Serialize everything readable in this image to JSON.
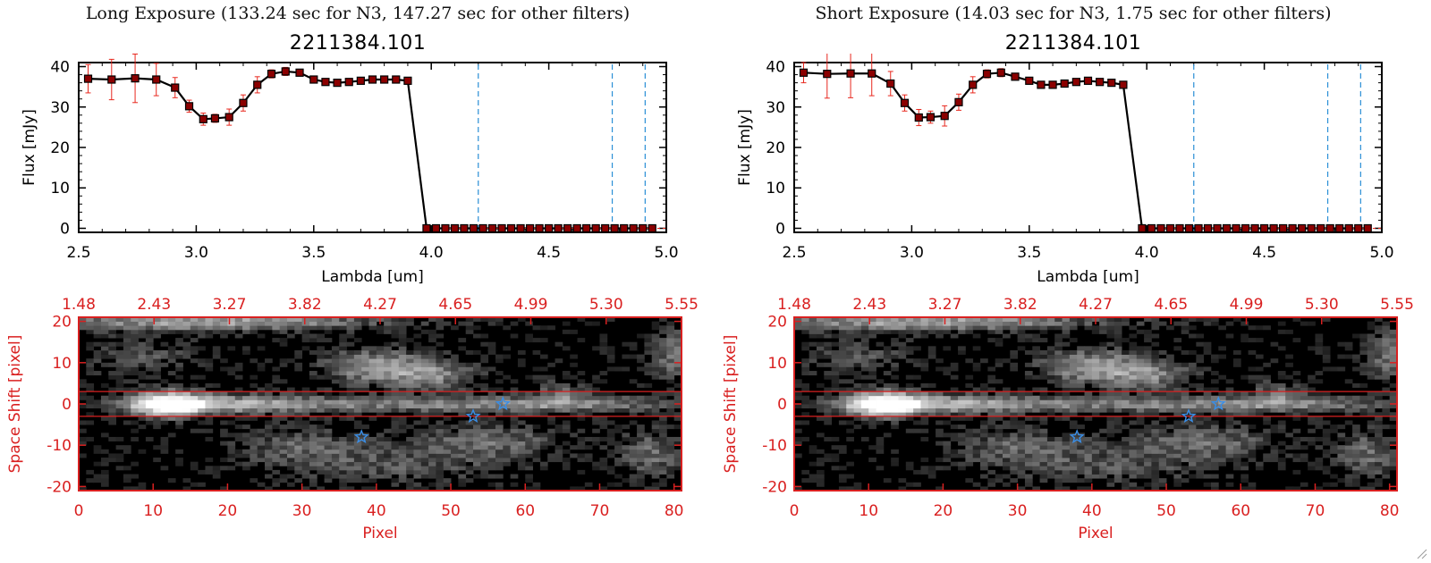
{
  "panels": [
    {
      "id": "long",
      "exposure_title": "Long Exposure (133.24 sec for N3, 147.27 sec for other filters)",
      "source_id": "2211384.101"
    },
    {
      "id": "short",
      "exposure_title": "Short Exposure (14.03 sec for N3, 1.75 sec for other filters)",
      "source_id": "2211384.101"
    }
  ],
  "colors": {
    "axis": "#000000",
    "line": "#000000",
    "marker": "#8b0000",
    "errorbar": "#e8281e",
    "filter_line": "#2a8fd6",
    "image_axis": "#d92020",
    "aperture": "#d92020",
    "star_marker": "#3a8ee6"
  },
  "chart_data": [
    {
      "panel": "long",
      "type": "line",
      "title": "2211384.101",
      "xlabel": "Lambda [um]",
      "ylabel": "Flux [mJy]",
      "xlim": [
        2.5,
        5.0
      ],
      "ylim": [
        -1,
        41
      ],
      "xticks": [
        "2.5",
        "3.0",
        "3.5",
        "4.0",
        "4.5",
        "5.0"
      ],
      "yticks": [
        "0",
        "10",
        "20",
        "30",
        "40"
      ],
      "filter_lines": [
        4.2,
        4.77,
        4.91
      ],
      "series": [
        {
          "x": [
            2.54,
            2.64,
            2.74,
            2.83,
            2.91,
            2.97,
            3.03,
            3.08,
            3.14,
            3.2,
            3.26,
            3.32,
            3.38,
            3.44,
            3.5,
            3.55,
            3.6,
            3.65,
            3.7,
            3.75,
            3.8,
            3.85,
            3.9,
            3.98,
            4.02,
            4.06,
            4.1,
            4.14,
            4.18,
            4.22,
            4.26,
            4.3,
            4.34,
            4.38,
            4.42,
            4.46,
            4.5,
            4.54,
            4.58,
            4.62,
            4.66,
            4.7,
            4.74,
            4.78,
            4.82,
            4.86,
            4.9,
            4.94
          ],
          "y": [
            37,
            36.8,
            37.1,
            36.8,
            34.8,
            30.2,
            27,
            27.2,
            27.5,
            31,
            35.5,
            38.2,
            38.8,
            38.5,
            36.8,
            36.2,
            36,
            36.2,
            36.5,
            36.8,
            36.8,
            36.8,
            36.5,
            0,
            0,
            0,
            0,
            0,
            0,
            0,
            0,
            0,
            0,
            0,
            0,
            0,
            0,
            0,
            0,
            0,
            0,
            0,
            0,
            0,
            0,
            0,
            0,
            0
          ],
          "yerr": [
            3.5,
            5.0,
            6.0,
            4.0,
            2.5,
            1.5,
            1.5,
            1.0,
            2.0,
            2.0,
            2.0,
            1.0,
            1.0,
            0.5,
            0.5,
            0.5,
            0.5,
            0.5,
            0.5,
            0.5,
            0.5,
            0.5,
            0.5,
            0,
            0,
            0,
            0,
            0,
            0,
            0,
            0,
            0,
            0,
            0,
            0,
            0,
            0,
            0,
            0,
            0,
            0,
            0,
            0,
            0,
            0,
            0,
            0,
            0
          ]
        }
      ]
    },
    {
      "panel": "short",
      "type": "line",
      "title": "2211384.101",
      "xlabel": "Lambda [um]",
      "ylabel": "Flux [mJy]",
      "xlim": [
        2.5,
        5.0
      ],
      "ylim": [
        -1,
        41
      ],
      "xticks": [
        "2.5",
        "3.0",
        "3.5",
        "4.0",
        "4.5",
        "5.0"
      ],
      "yticks": [
        "0",
        "10",
        "20",
        "30",
        "40"
      ],
      "filter_lines": [
        4.2,
        4.77,
        4.91
      ],
      "series": [
        {
          "x": [
            2.54,
            2.64,
            2.74,
            2.83,
            2.91,
            2.97,
            3.03,
            3.08,
            3.14,
            3.2,
            3.26,
            3.32,
            3.38,
            3.44,
            3.5,
            3.55,
            3.6,
            3.65,
            3.7,
            3.75,
            3.8,
            3.85,
            3.9,
            3.98,
            4.02,
            4.06,
            4.1,
            4.14,
            4.18,
            4.22,
            4.26,
            4.3,
            4.34,
            4.38,
            4.42,
            4.46,
            4.5,
            4.54,
            4.58,
            4.62,
            4.66,
            4.7,
            4.74,
            4.78,
            4.82,
            4.86,
            4.9,
            4.94
          ],
          "y": [
            38.5,
            38.2,
            38.3,
            38.3,
            35.8,
            31,
            27.4,
            27.5,
            27.8,
            31.2,
            35.5,
            38.2,
            38.5,
            37.5,
            36.5,
            35.5,
            35.5,
            35.8,
            36.2,
            36.5,
            36.2,
            36,
            35.5,
            0,
            0,
            0,
            0,
            0,
            0,
            0,
            0,
            0,
            0,
            0,
            0,
            0,
            0,
            0,
            0,
            0,
            0,
            0,
            0,
            0,
            0,
            0,
            0,
            0
          ],
          "yerr": [
            2.5,
            6.0,
            6.0,
            5.5,
            3.0,
            2.0,
            2.0,
            1.5,
            2.5,
            2.0,
            2.0,
            1.0,
            1.0,
            0.5,
            0.5,
            0.5,
            0.5,
            0.5,
            0.5,
            0.5,
            0.5,
            0.5,
            0.5,
            0,
            0,
            0,
            0,
            0,
            0,
            0,
            0,
            0,
            0,
            0,
            0,
            0,
            0,
            0,
            0,
            0,
            0,
            0,
            0,
            0,
            0,
            0,
            0,
            0
          ]
        }
      ]
    },
    {
      "panel": "long",
      "type": "heatmap",
      "xlabel": "Pixel",
      "ylabel": "Space Shift [pixel]",
      "xlim": [
        0,
        81
      ],
      "ylim": [
        -21,
        21
      ],
      "xticks": [
        "0",
        "10",
        "20",
        "30",
        "40",
        "50",
        "60",
        "70",
        "80"
      ],
      "yticks": [
        "-20",
        "-10",
        "0",
        "10",
        "20"
      ],
      "top_ticks": [
        "1.48",
        "2.43",
        "3.27",
        "3.82",
        "4.27",
        "4.65",
        "4.99",
        "5.30",
        "5.55"
      ],
      "aperture_rows": [
        -3,
        3
      ],
      "stars": [
        {
          "x": 38,
          "y": -8
        },
        {
          "x": 53,
          "y": -3
        },
        {
          "x": 57,
          "y": 0
        }
      ]
    },
    {
      "panel": "short",
      "type": "heatmap",
      "xlabel": "Pixel",
      "ylabel": "Space Shift [pixel]",
      "xlim": [
        0,
        81
      ],
      "ylim": [
        -21,
        21
      ],
      "xticks": [
        "0",
        "10",
        "20",
        "30",
        "40",
        "50",
        "60",
        "70",
        "80"
      ],
      "yticks": [
        "-20",
        "-10",
        "0",
        "10",
        "20"
      ],
      "top_ticks": [
        "1.48",
        "2.43",
        "3.27",
        "3.82",
        "4.27",
        "4.65",
        "4.99",
        "5.30",
        "5.55"
      ],
      "aperture_rows": [
        -3,
        3
      ],
      "stars": [
        {
          "x": 38,
          "y": -8
        },
        {
          "x": 53,
          "y": -3
        },
        {
          "x": 57,
          "y": 0
        }
      ]
    }
  ]
}
